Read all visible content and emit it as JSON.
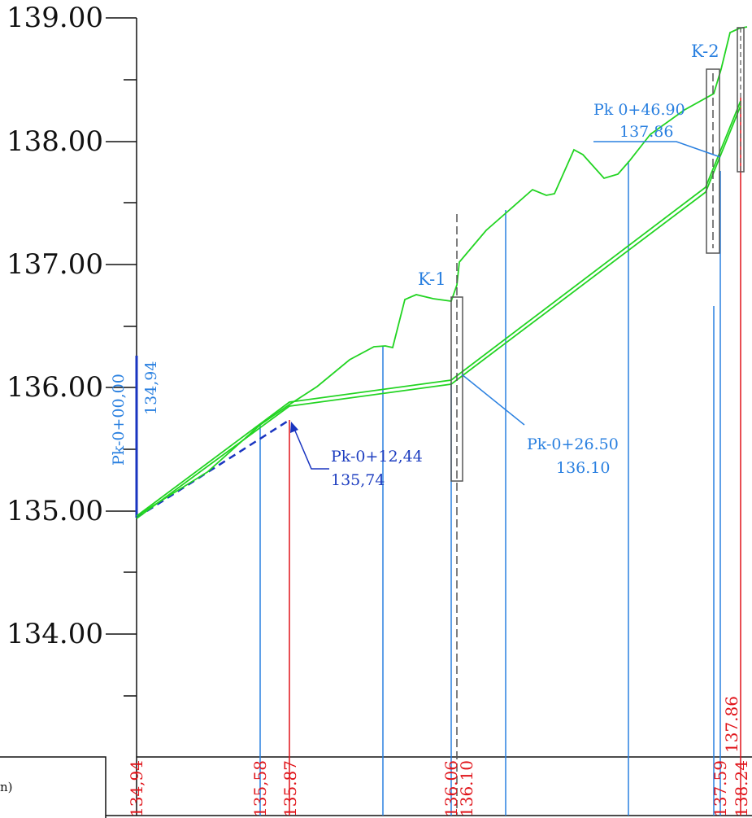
{
  "y_axis": {
    "tick_labels": [
      "139.00",
      "138.00",
      "137.00",
      "136.00",
      "135.00",
      "134.00"
    ]
  },
  "markers": {
    "k1": "K-1",
    "k2": "K-2"
  },
  "callouts": {
    "start_station": "Pk-0+00,00",
    "start_elevation": "134,94",
    "pk12_station": "Pk-0+12,44",
    "pk12_elevation": "135,74",
    "pk26_station": "Pk-0+26.50",
    "pk26_elevation": "136.10",
    "pk46_station": "Pk 0+46.90",
    "pk46_elevation": "137.86"
  },
  "bottom_band": {
    "values": [
      "134,94",
      "135,58",
      "135.87",
      "136.06",
      "136.10",
      "137.59",
      "138.24"
    ],
    "upper_value": "137.86",
    "legend_fragment": "n)"
  },
  "colors": {
    "ground": "#22d422",
    "design": "#22d422",
    "existing_dashed": "#1a35c0",
    "leader_blue": "#2a80e0",
    "leader_red": "#e0141a",
    "axis": "#111111"
  },
  "chart_data": {
    "type": "line",
    "ylim": [
      133,
      139
    ],
    "grid": false,
    "series": [
      {
        "x": [
          0,
          5,
          9.9,
          14.5,
          18.6,
          22.2,
          23.3,
          24.1,
          25.0,
          26.4,
          26.8,
          30.2,
          35.2
        ],
        "values": [
          134.94,
          135.33,
          135.68,
          135.92,
          136.25,
          136.33,
          136.33,
          136.72,
          136.75,
          136.7,
          137.05,
          137.3,
          137.55
        ]
      }
    ]
  }
}
